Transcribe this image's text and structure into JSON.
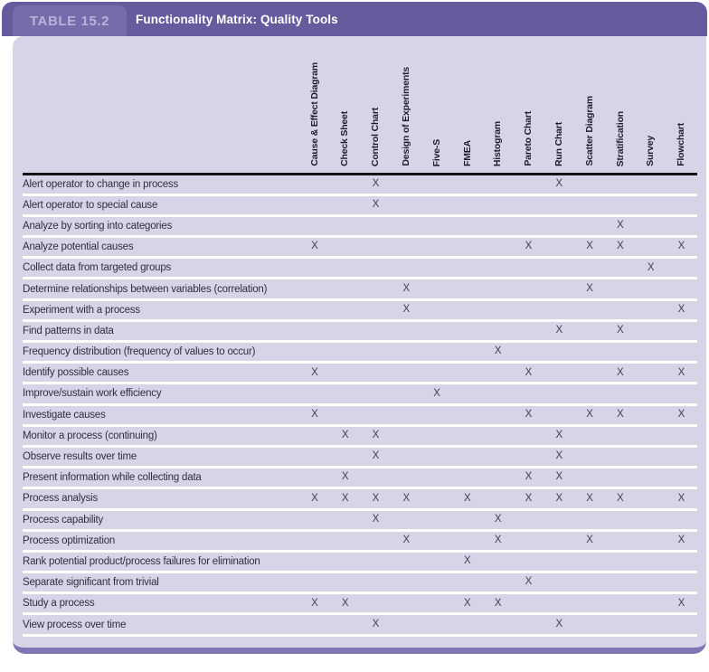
{
  "header": {
    "table_label": "TABLE 15.2",
    "title": "Functionality Matrix: Quality Tools"
  },
  "colors": {
    "header_bar": "#655c9e",
    "header_tab": "#746cab",
    "tab_text": "#b7b4d7",
    "body_panel": "#d7d4e8",
    "bottom_edge": "#7f77b3",
    "rule": "#151515"
  },
  "matrix": {
    "mark": "X",
    "columns": [
      "Cause & Effect Diagram",
      "Check Sheet",
      "Control Chart",
      "Design of Experiments",
      "Five-S",
      "FMEA",
      "Histogram",
      "Pareto Chart",
      "Run Chart",
      "Scatter Diagram",
      "Stratification",
      "Survey",
      "Flowchart"
    ],
    "rows": [
      {
        "label": "Alert operator to change in process",
        "marks": [
          2,
          8
        ]
      },
      {
        "label": "Alert operator to special cause",
        "marks": [
          2
        ]
      },
      {
        "label": "Analyze by sorting into categories",
        "marks": [
          10
        ]
      },
      {
        "label": "Analyze potential causes",
        "marks": [
          0,
          7,
          9,
          10,
          12
        ]
      },
      {
        "label": "Collect data from targeted groups",
        "marks": [
          11
        ]
      },
      {
        "label": "Determine relationships between variables (correlation)",
        "marks": [
          3,
          9
        ]
      },
      {
        "label": "Experiment with a process",
        "marks": [
          3,
          12
        ]
      },
      {
        "label": "Find patterns in data",
        "marks": [
          8,
          10
        ]
      },
      {
        "label": "Frequency distribution (frequency of values to occur)",
        "marks": [
          6
        ]
      },
      {
        "label": "Identify possible causes",
        "marks": [
          0,
          7,
          10,
          12
        ]
      },
      {
        "label": "Improve/sustain work efficiency",
        "marks": [
          4
        ]
      },
      {
        "label": "Investigate causes",
        "marks": [
          0,
          7,
          9,
          10,
          12
        ]
      },
      {
        "label": "Monitor a process (continuing)",
        "marks": [
          1,
          2,
          8
        ]
      },
      {
        "label": "Observe results over time",
        "marks": [
          2,
          8
        ]
      },
      {
        "label": "Present information while collecting data",
        "marks": [
          1,
          7,
          8
        ]
      },
      {
        "label": "Process analysis",
        "marks": [
          0,
          1,
          2,
          3,
          5,
          7,
          8,
          9,
          10,
          12
        ]
      },
      {
        "label": "Process capability",
        "marks": [
          2,
          6
        ]
      },
      {
        "label": "Process optimization",
        "marks": [
          3,
          6,
          9,
          12
        ]
      },
      {
        "label": "Rank potential product/process failures for elimination",
        "marks": [
          5
        ]
      },
      {
        "label": "Separate significant from trivial",
        "marks": [
          7
        ]
      },
      {
        "label": "Study a process",
        "marks": [
          0,
          1,
          5,
          6,
          12
        ]
      },
      {
        "label": "View process over time",
        "marks": [
          2,
          8
        ]
      }
    ]
  }
}
